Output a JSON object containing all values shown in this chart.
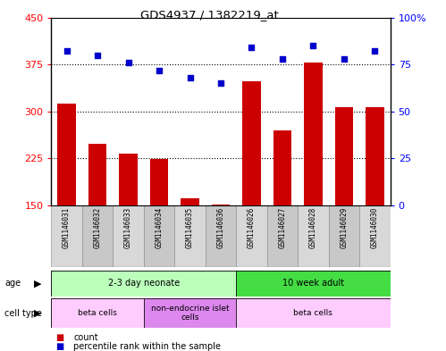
{
  "title": "GDS4937 / 1382219_at",
  "samples": [
    "GSM1146031",
    "GSM1146032",
    "GSM1146033",
    "GSM1146034",
    "GSM1146035",
    "GSM1146036",
    "GSM1146026",
    "GSM1146027",
    "GSM1146028",
    "GSM1146029",
    "GSM1146030"
  ],
  "counts": [
    313,
    248,
    232,
    224,
    161,
    152,
    348,
    270,
    378,
    307,
    307
  ],
  "percentiles": [
    82,
    80,
    76,
    72,
    68,
    65,
    84,
    78,
    85,
    78,
    82
  ],
  "ylim_left": [
    150,
    450
  ],
  "ylim_right": [
    0,
    100
  ],
  "yticks_left": [
    150,
    225,
    300,
    375,
    450
  ],
  "yticks_right": [
    0,
    25,
    50,
    75,
    100
  ],
  "bar_color": "#cc0000",
  "dot_color": "#0000cc",
  "age_groups": [
    {
      "label": "2-3 day neonate",
      "start": 0,
      "end": 6,
      "color": "#bbffbb"
    },
    {
      "label": "10 week adult",
      "start": 6,
      "end": 11,
      "color": "#44dd44"
    }
  ],
  "cell_type_groups": [
    {
      "label": "beta cells",
      "start": 0,
      "end": 3,
      "color": "#ffccff"
    },
    {
      "label": "non-endocrine islet\ncells",
      "start": 3,
      "end": 6,
      "color": "#dd88ee"
    },
    {
      "label": "beta cells",
      "start": 6,
      "end": 11,
      "color": "#ffccff"
    }
  ],
  "legend_items": [
    {
      "label": "count",
      "color": "#cc0000"
    },
    {
      "label": "percentile rank within the sample",
      "color": "#0000cc"
    }
  ],
  "sample_bg_colors": [
    "#d8d8d8",
    "#c8c8c8"
  ]
}
